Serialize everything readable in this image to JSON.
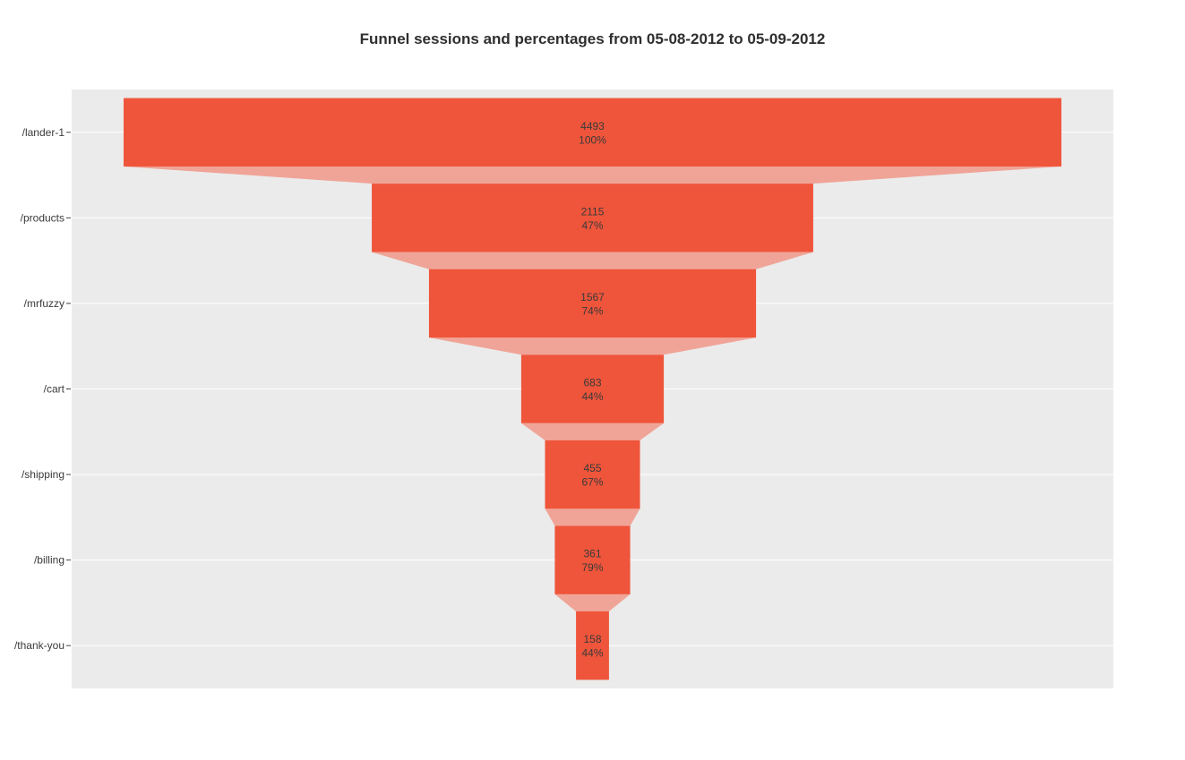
{
  "chart_data": {
    "type": "funnel",
    "title": "Funnel sessions and percentages from 05-08-2012 to 05-09-2012",
    "categories": [
      "/lander-1",
      "/products",
      "/mrfuzzy",
      "/cart",
      "/shipping",
      "/billing",
      "/thank-you"
    ],
    "values": [
      4493,
      2115,
      1567,
      683,
      455,
      361,
      158
    ],
    "percent_labels": [
      "100%",
      "47%",
      "74%",
      "44%",
      "67%",
      "79%",
      "44%"
    ],
    "colors": {
      "bar": "#ef553b",
      "connector": "#f0a497",
      "plot_background": "#ebebeb",
      "gridline": "#ffffff",
      "text": "#3a3a3a"
    },
    "grid": true
  }
}
